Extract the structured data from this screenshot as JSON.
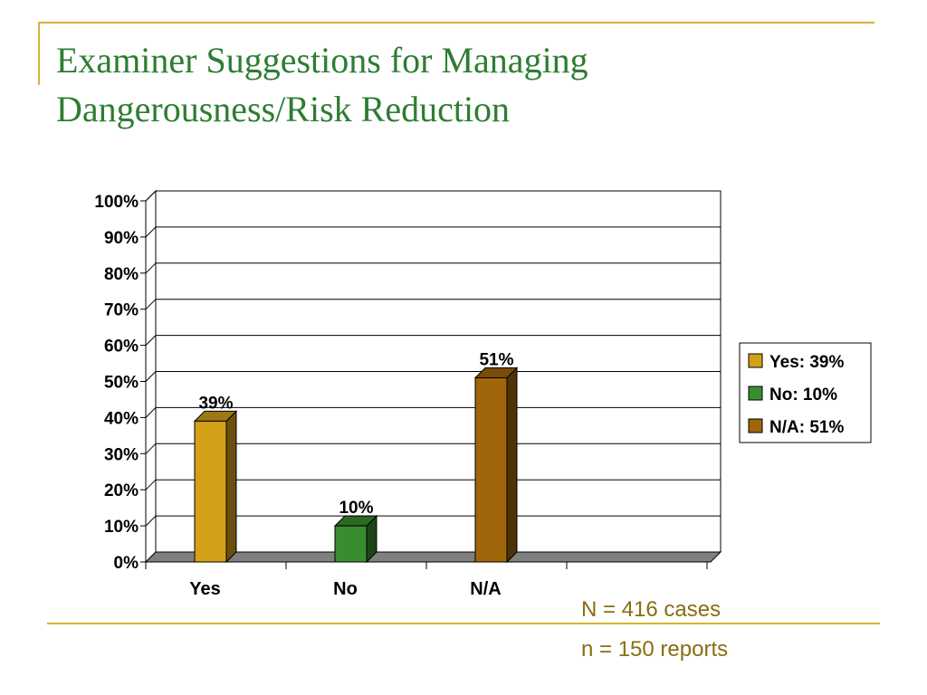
{
  "slide": {
    "title_line1": "Examiner Suggestions for Managing",
    "title_line2": "Dangerousness/Risk Reduction",
    "note_cases": "N = 416 cases",
    "note_reports": "n = 150 reports"
  },
  "colors": {
    "accent_rule": "#d8b232",
    "title": "#2e7d32",
    "note": "#8a6d10"
  },
  "chart_data": {
    "type": "bar",
    "style": "3d",
    "categories": [
      "Yes",
      "No",
      "N/A"
    ],
    "values": [
      39,
      10,
      51
    ],
    "value_labels": [
      "39%",
      "10%",
      "51%"
    ],
    "colors": [
      "#d4a017",
      "#3a8c30",
      "#a0660a"
    ],
    "ylim": [
      0,
      100
    ],
    "yticks": [
      "0%",
      "10%",
      "20%",
      "30%",
      "40%",
      "50%",
      "60%",
      "70%",
      "80%",
      "90%",
      "100%"
    ],
    "grid": true,
    "legend_position": "right",
    "legend": [
      "Yes: 39%",
      "No: 10%",
      "N/A: 51%"
    ]
  }
}
